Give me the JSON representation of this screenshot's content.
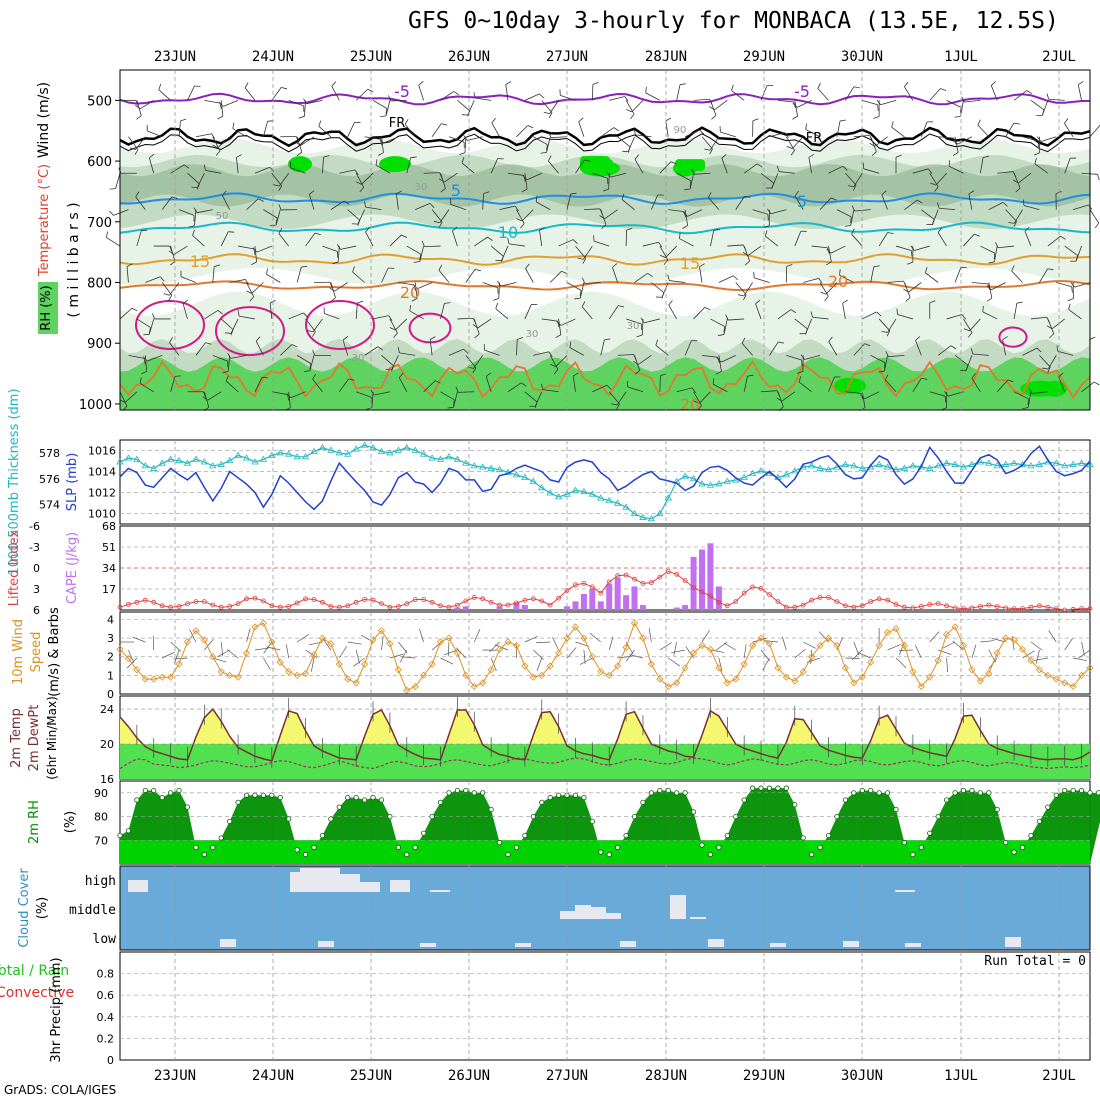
{
  "title": "GFS 0~10day 3-hourly for MONBACA (13.5E, 12.5S)",
  "footer": "GrADS: COLA/IGES",
  "date_labels": [
    "23JUN",
    "24JUN",
    "25JUN",
    "26JUN",
    "27JUN",
    "28JUN",
    "29JUN",
    "30JUN",
    "1JUL",
    "2JUL"
  ],
  "colors": {
    "rh_light": "#e6f3e6",
    "rh_mid": "#c3dac3",
    "rh_dark": "#97b897",
    "rh_green": "#5fd35f",
    "rh_bright": "#00e000",
    "temp_purple": "#8a1fc0",
    "temp_blue": "#1e90e0",
    "temp_cyan": "#18b8c8",
    "temp_orange": "#e0a030",
    "temp_dorange": "#e07830",
    "temp_magenta": "#d0188a",
    "slp": "#2040d0",
    "thick": "#20b8c0",
    "cape": "#c070f0",
    "li": "#e04040",
    "wind": "#e09020",
    "temp_fill": "#f4f870",
    "dew_fill": "#50e050",
    "rh2m_dark": "#009000",
    "rh2m_light": "#00dd00",
    "cloud_bg": "#6aaad8",
    "cloud_fill": "#e8e8f0"
  },
  "panels": {
    "upper": {
      "ylabel_wind": "Wind (m/s)",
      "ylabel_temp": "Temperature (°C)",
      "ylabel_rh": "RH (%)",
      "ylabel_p": "( m i l l i b a r s )",
      "ytick_labels": [
        "500",
        "600",
        "700",
        "800",
        "900",
        "1000"
      ],
      "contour_labels": [
        "-5",
        "-5",
        "FR",
        "FR",
        "5",
        "5",
        "10",
        "15",
        "15",
        "20",
        "20",
        "20",
        "30",
        "30",
        "30",
        "30",
        "50",
        "50",
        "90"
      ]
    },
    "slp": {
      "ylabel_left": "1000-500mb Thickness (dm)",
      "ylabel_right": "SLP (mb)",
      "left_ticks": [
        "578",
        "576",
        "574"
      ],
      "right_ticks": [
        "1016",
        "1014",
        "1012",
        "1010"
      ]
    },
    "cape": {
      "ylabel_left": "Lifted Index",
      "ylabel_right": "CAPE (J/kg)",
      "left_ticks": [
        "-6",
        "-3",
        "0",
        "3",
        "6"
      ],
      "right_ticks": [
        "68",
        "51",
        "34",
        "17"
      ]
    },
    "wind10": {
      "ylabel": "10m Wind Speed (m/s) & Barbs",
      "ticks": [
        "4",
        "3",
        "2",
        "1",
        "0"
      ]
    },
    "t2m": {
      "ylabel": "2m Temp 2m DewPt (6hr Min/Max)",
      "ticks": [
        "24",
        "20",
        "16"
      ]
    },
    "rh2m": {
      "ylabel": "2m RH (%)",
      "ticks": [
        "90",
        "80",
        "70"
      ]
    },
    "cloud": {
      "ylabel": "Cloud Cover (%)",
      "ticks": [
        "high",
        "middle",
        "low"
      ]
    },
    "precip": {
      "ylabel": "3hr Precip (mm)",
      "label_total": "Total / Rain",
      "label_conv": "Convective",
      "run_total": "Run Total = 0",
      "ticks": [
        "0.8",
        "0.6",
        "0.4",
        "0.2",
        "0"
      ]
    }
  },
  "chart_data": [
    {
      "type": "line",
      "name": "sea_level_pressure",
      "units": "mb",
      "ylim": [
        1009,
        1017
      ],
      "x_steps": "3-hourly from 22JUN 12Z to 2JUL 09Z",
      "values": [
        1013.5,
        1014.3,
        1013.9,
        1012.7,
        1012.5,
        1013.4,
        1014.3,
        1013.7,
        1013.2,
        1013.9,
        1012.5,
        1011.2,
        1012.4,
        1014.0,
        1013.4,
        1012.8,
        1012.0,
        1010.6,
        1011.8,
        1013.6,
        1012.9,
        1012.0,
        1011.1,
        1010.4,
        1011.2,
        1013.1,
        1014.8,
        1013.9,
        1013.0,
        1012.2,
        1011.1,
        1010.8,
        1011.8,
        1013.4,
        1013.9,
        1013.0,
        1012.8,
        1012.0,
        1012.9,
        1014.3,
        1014.0,
        1013.2,
        1013.2,
        1012.1,
        1012.3,
        1013.6,
        1013.8,
        1014.3,
        1014.6,
        1014.3,
        1014.0,
        1013.2,
        1013.0,
        1014.4,
        1014.9,
        1015.1,
        1014.9,
        1013.9,
        1013.3,
        1012.2,
        1012.6,
        1013.2,
        1013.7,
        1014.0,
        1013.3,
        1013.1,
        1012.9,
        1012.2,
        1012.6,
        1013.9,
        1014.4,
        1014.5,
        1014.1,
        1013.4,
        1012.9,
        1012.7,
        1013.4,
        1014.0,
        1013.3,
        1012.5,
        1013.3,
        1014.7,
        1014.9,
        1015.3,
        1015.5,
        1014.7,
        1013.7,
        1013.3,
        1013.4,
        1014.6,
        1015.5,
        1015.1,
        1013.7,
        1012.8,
        1013.3,
        1014.5,
        1016.3,
        1015.3,
        1014.0,
        1012.9,
        1012.9,
        1014.1,
        1015.3,
        1015.6,
        1015.1,
        1013.8,
        1014.1,
        1014.6,
        1015.7,
        1016.4,
        1015.1,
        1014.0,
        1013.6,
        1013.8,
        1014.1,
        1015.0
      ]
    },
    {
      "type": "line",
      "name": "thickness_1000_500mb",
      "units": "dm",
      "ylim": [
        572.5,
        579
      ],
      "values": [
        577.3,
        577.6,
        577.5,
        577.0,
        576.8,
        577.2,
        577.5,
        577.4,
        577.2,
        577.5,
        577.3,
        577.0,
        577.1,
        577.4,
        577.8,
        577.6,
        577.3,
        577.5,
        577.8,
        578.0,
        577.9,
        577.7,
        577.7,
        578.1,
        578.4,
        578.2,
        578.0,
        577.9,
        578.3,
        578.6,
        578.4,
        578.1,
        578.0,
        578.2,
        578.4,
        578.2,
        577.9,
        577.6,
        577.5,
        577.7,
        577.5,
        577.2,
        577.0,
        576.9,
        576.8,
        576.7,
        576.5,
        576.3,
        576.1,
        575.8,
        575.3,
        574.9,
        574.6,
        574.8,
        575.1,
        575.0,
        574.8,
        574.5,
        574.3,
        574.1,
        573.8,
        573.3,
        573.0,
        572.9,
        573.3,
        574.5,
        575.8,
        576.2,
        576.0,
        575.6,
        575.5,
        575.6,
        575.8,
        575.9,
        576.1,
        576.4,
        576.6,
        576.4,
        576.1,
        576.3,
        576.6,
        576.9,
        577.0,
        576.8,
        576.7,
        576.9,
        577.1,
        577.0,
        576.8,
        576.9,
        577.1,
        576.9,
        576.7,
        576.8,
        577.0,
        576.9,
        576.8,
        577.0,
        577.2,
        577.1,
        576.9,
        577.1,
        577.3,
        577.2,
        577.0,
        577.1,
        577.2,
        577.1,
        577.0,
        577.1,
        577.3,
        577.2,
        577.0,
        577.1,
        577.2,
        577.1
      ]
    },
    {
      "type": "bar",
      "name": "cape",
      "units": "J/kg",
      "ylim": [
        0,
        68
      ],
      "x_labels_index": "3-hourly steps",
      "values": [
        0,
        0,
        0,
        0,
        0,
        0,
        0,
        0,
        0,
        0,
        0,
        0,
        0,
        0,
        0,
        0,
        0,
        0,
        0,
        0,
        0,
        0,
        0,
        0,
        0,
        0,
        0,
        0,
        0,
        0,
        0,
        0,
        0,
        0,
        0,
        0,
        0,
        0,
        0,
        0,
        2,
        3,
        0,
        0,
        0,
        3,
        0,
        6,
        4,
        0,
        0,
        0,
        0,
        3,
        7,
        13,
        17,
        7,
        21,
        26,
        12,
        19,
        4,
        0,
        0,
        0,
        2,
        4,
        43,
        49,
        54,
        19,
        0,
        0,
        0,
        0,
        0,
        0,
        0,
        1,
        0,
        1,
        0,
        0,
        0,
        0,
        0,
        0,
        0,
        0,
        0,
        0,
        0,
        0,
        0,
        0,
        0,
        0,
        0,
        0,
        0,
        0,
        0,
        0,
        0,
        0,
        0,
        0,
        0,
        0,
        0,
        0,
        0,
        0,
        0,
        0
      ]
    },
    {
      "type": "line",
      "name": "lifted_index",
      "units": "C",
      "ylim": [
        6,
        -6
      ],
      "values": [
        5.6,
        5.2,
        4.9,
        4.6,
        4.9,
        5.4,
        5.6,
        5.5,
        5.1,
        4.8,
        4.8,
        5.3,
        5.6,
        5.5,
        5.1,
        4.4,
        4.3,
        4.7,
        5.4,
        5.6,
        5.5,
        5.0,
        4.4,
        4.5,
        4.9,
        5.5,
        5.6,
        5.4,
        4.9,
        4.5,
        4.6,
        5.1,
        5.6,
        5.5,
        5.1,
        4.5,
        4.5,
        4.9,
        5.4,
        5.6,
        5.3,
        4.7,
        4.2,
        4.4,
        4.9,
        5.3,
        5.3,
        5.0,
        4.6,
        4.4,
        4.7,
        5.3,
        4.3,
        3.2,
        2.4,
        2.2,
        2.7,
        3.6,
        2.0,
        1.1,
        1.0,
        1.6,
        2.2,
        2.1,
        1.3,
        0.5,
        0.9,
        1.8,
        2.8,
        3.4,
        4.0,
        4.9,
        5.4,
        4.8,
        3.6,
        2.7,
        2.9,
        3.8,
        4.8,
        5.6,
        5.6,
        5.3,
        4.6,
        4.2,
        4.2,
        4.8,
        5.4,
        5.6,
        5.4,
        4.8,
        4.4,
        4.6,
        5.2,
        5.6,
        5.7,
        5.5,
        5.2,
        5.1,
        5.4,
        5.7,
        5.8,
        5.7,
        5.5,
        5.3,
        5.5,
        5.7,
        5.8,
        5.8,
        5.6,
        5.4,
        5.6,
        5.8,
        6.0,
        5.9,
        5.8,
        5.8
      ]
    },
    {
      "type": "line",
      "name": "wind_speed_10m",
      "units": "m/s",
      "ylim": [
        0,
        4.4
      ],
      "values": [
        2.4,
        1.9,
        1.3,
        0.8,
        0.8,
        0.9,
        0.9,
        1.6,
        2.8,
        3.4,
        2.9,
        2.0,
        1.2,
        1.0,
        0.9,
        2.2,
        3.6,
        3.8,
        2.8,
        1.7,
        1.2,
        1.0,
        1.1,
        2.1,
        3.0,
        2.7,
        1.6,
        0.8,
        0.6,
        1.6,
        2.9,
        3.4,
        2.7,
        1.3,
        0.2,
        0.4,
        1.0,
        1.6,
        2.8,
        3.0,
        2.2,
        1.0,
        0.4,
        0.6,
        1.3,
        2.4,
        2.8,
        2.6,
        1.5,
        0.9,
        1.0,
        1.5,
        2.2,
        3.0,
        3.6,
        3.0,
        2.0,
        1.2,
        1.0,
        1.5,
        2.5,
        3.8,
        3.0,
        1.6,
        0.8,
        0.4,
        0.6,
        1.4,
        2.2,
        2.6,
        2.4,
        1.4,
        0.6,
        0.8,
        1.6,
        2.6,
        3.0,
        2.7,
        1.4,
        0.9,
        0.7,
        1.2,
        2.0,
        2.6,
        3.0,
        2.6,
        1.4,
        0.6,
        0.9,
        1.7,
        2.6,
        3.3,
        3.5,
        2.6,
        1.2,
        0.4,
        0.9,
        1.8,
        3.2,
        3.6,
        2.6,
        1.3,
        0.7,
        1.1,
        2.2,
        3.0,
        2.9,
        2.4,
        1.8,
        1.3,
        1.0,
        0.8,
        0.6,
        0.4,
        1.0,
        1.4
      ]
    },
    {
      "type": "area",
      "name": "temp_2m",
      "units": "C",
      "ylim": [
        16,
        25.5
      ],
      "values": [
        23.1,
        22.0,
        20.7,
        19.7,
        19.2,
        18.9,
        18.6,
        18.3,
        18.2,
        20.8,
        23.0,
        24.0,
        22.6,
        20.9,
        19.6,
        19.1,
        18.6,
        18.3,
        18.1,
        21.0,
        23.8,
        23.5,
        21.5,
        19.8,
        19.2,
        18.8,
        18.4,
        18.3,
        18.2,
        20.9,
        23.4,
        23.9,
        22.1,
        19.9,
        19.3,
        18.8,
        18.4,
        18.3,
        18.2,
        21.1,
        23.9,
        23.9,
        22.2,
        19.9,
        19.3,
        18.8,
        18.6,
        18.3,
        18.2,
        21.0,
        23.6,
        23.7,
        22.0,
        19.8,
        19.2,
        18.9,
        18.7,
        18.4,
        18.2,
        20.6,
        23.4,
        23.7,
        21.8,
        20.0,
        19.6,
        19.2,
        19.0,
        18.6,
        18.5,
        21.0,
        23.8,
        23.2,
        21.6,
        20.0,
        19.5,
        19.2,
        18.9,
        18.6,
        18.4,
        20.2,
        22.9,
        22.8,
        21.3,
        19.8,
        19.3,
        19.0,
        18.7,
        18.5,
        18.4,
        20.4,
        22.9,
        23.3,
        21.7,
        20.1,
        19.6,
        19.3,
        19.0,
        18.8,
        18.6,
        20.6,
        23.2,
        23.3,
        21.6,
        20.0,
        19.5,
        19.2,
        18.9,
        18.7,
        18.5,
        18.3,
        18.2,
        18.3,
        18.3,
        18.2,
        18.5,
        19.1
      ]
    },
    {
      "type": "line",
      "name": "dewpoint_2m",
      "units": "C",
      "ylim": [
        16,
        25.5
      ],
      "values": [
        17.2,
        17.8,
        18.3,
        18.2,
        17.7,
        17.6,
        17.5,
        17.3,
        17.4,
        17.6,
        17.9,
        18.1,
        18.0,
        17.8,
        17.6,
        17.4,
        17.4,
        17.6,
        17.9,
        18.1,
        18.0,
        17.7,
        17.4,
        17.3,
        17.5,
        17.8,
        18.1,
        17.8,
        17.5,
        17.3,
        17.2,
        17.5,
        17.9,
        18.0,
        17.8,
        17.5,
        17.4,
        17.5,
        17.8,
        18.1,
        18.2,
        18.0,
        17.8,
        17.6,
        17.5,
        17.8,
        18.1,
        18.4,
        18.3,
        18.1,
        17.9,
        17.8,
        17.9,
        18.2,
        18.4,
        18.3,
        18.0,
        17.7,
        17.6,
        17.8,
        18.1,
        18.3,
        18.2,
        18.0,
        17.8,
        17.7,
        17.9,
        18.2,
        18.4,
        18.3,
        18.1,
        17.8,
        17.6,
        17.8,
        18.1,
        18.3,
        18.2,
        17.9,
        17.7,
        17.6,
        17.8,
        18.1,
        18.2,
        18.0,
        17.7,
        17.6,
        17.8,
        18.1,
        18.2,
        18.0,
        17.7,
        17.6,
        17.8,
        18.0,
        18.1,
        17.9,
        17.6,
        17.5,
        17.7,
        18.0,
        18.1,
        17.9,
        17.6,
        17.5,
        17.7,
        17.9,
        17.8,
        17.6,
        17.4,
        17.3,
        17.2,
        17.3,
        17.4,
        17.3,
        17.4,
        17.6
      ]
    },
    {
      "type": "area",
      "name": "rh_2m",
      "units": "%",
      "ylim": [
        60,
        95
      ],
      "values": [
        72,
        74,
        87,
        91,
        91,
        88,
        90,
        91,
        84,
        67,
        64,
        67,
        71,
        78,
        86,
        89,
        89,
        89,
        89,
        88,
        79,
        66,
        64,
        67,
        72,
        79,
        84,
        88,
        88,
        87,
        88,
        87,
        80,
        67,
        64,
        67,
        73,
        80,
        86,
        90,
        91,
        91,
        90,
        90,
        83,
        69,
        64,
        67,
        72,
        80,
        86,
        88,
        89,
        89,
        89,
        88,
        78,
        65,
        64,
        67,
        72,
        80,
        86,
        90,
        91,
        91,
        90,
        90,
        82,
        68,
        64,
        67,
        72,
        80,
        87,
        92,
        92,
        92,
        92,
        92,
        85,
        71,
        64,
        67,
        72,
        80,
        87,
        90,
        91,
        91,
        90,
        90,
        83,
        69,
        64,
        67,
        73,
        80,
        87,
        90,
        91,
        91,
        90,
        90,
        83,
        69,
        65,
        67,
        72,
        78,
        84,
        89,
        91,
        91,
        91,
        90,
        90,
        90
      ]
    },
    {
      "type": "table",
      "name": "cloud_cover_layers",
      "rows": [
        "high",
        "middle",
        "low"
      ],
      "note": "mostly near-zero; high cloud up to ~40% near 24JUN, middle cloud up to ~40% near 28JUN"
    },
    {
      "type": "bar",
      "name": "precip_3hr",
      "units": "mm",
      "ylim": [
        0,
        1.0
      ],
      "run_total": 0
    }
  ]
}
